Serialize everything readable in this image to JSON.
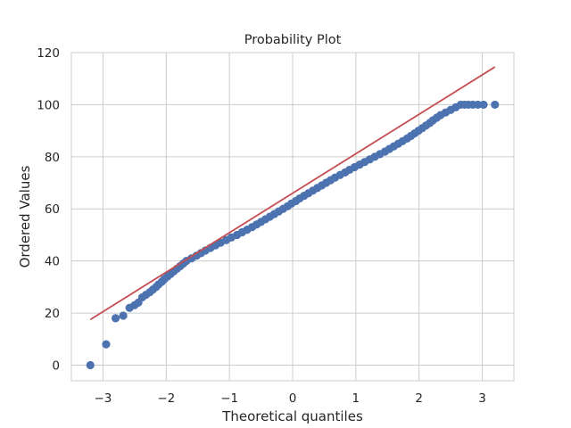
{
  "chart_data": {
    "type": "scatter",
    "title": "Probability Plot",
    "xlabel": "Theoretical quantiles",
    "ylabel": "Ordered Values",
    "xlim": [
      -3.5,
      3.5
    ],
    "ylim": [
      -6,
      120
    ],
    "x_ticks": [
      -3,
      -2,
      -1,
      0,
      1,
      2,
      3
    ],
    "x_tick_labels": [
      "−3",
      "−2",
      "−1",
      "0",
      "1",
      "2",
      "3"
    ],
    "y_ticks": [
      0,
      20,
      40,
      60,
      80,
      100,
      120
    ],
    "y_tick_labels": [
      "0",
      "20",
      "40",
      "60",
      "80",
      "100",
      "120"
    ],
    "grid": true,
    "series": [
      {
        "kind": "points",
        "color": "#4c72b0",
        "points": [
          [
            -3.2,
            0
          ],
          [
            -2.95,
            8
          ],
          [
            -2.8,
            18
          ],
          [
            -2.68,
            19
          ],
          [
            -2.58,
            22
          ],
          [
            -2.5,
            23
          ],
          [
            -2.44,
            24
          ],
          [
            -2.38,
            26
          ],
          [
            -2.32,
            27
          ],
          [
            -2.26,
            28
          ],
          [
            -2.21,
            29
          ],
          [
            -2.16,
            30
          ],
          [
            -2.12,
            31
          ],
          [
            -2.07,
            32
          ],
          [
            -2.03,
            33
          ],
          [
            -1.98,
            34
          ],
          [
            -1.93,
            35
          ],
          [
            -1.88,
            36
          ],
          [
            -1.83,
            37
          ],
          [
            -1.78,
            38
          ],
          [
            -1.73,
            39
          ],
          [
            -1.68,
            40
          ],
          [
            -1.6,
            41
          ],
          [
            -1.52,
            42
          ],
          [
            -1.45,
            43
          ],
          [
            -1.38,
            44
          ],
          [
            -1.3,
            45
          ],
          [
            -1.22,
            46
          ],
          [
            -1.14,
            47
          ],
          [
            -1.05,
            48
          ],
          [
            -0.97,
            49
          ],
          [
            -0.88,
            50
          ],
          [
            -0.8,
            51
          ],
          [
            -0.72,
            52
          ],
          [
            -0.64,
            53
          ],
          [
            -0.57,
            54
          ],
          [
            -0.5,
            55
          ],
          [
            -0.43,
            56
          ],
          [
            -0.36,
            57
          ],
          [
            -0.29,
            58
          ],
          [
            -0.22,
            59
          ],
          [
            -0.15,
            60
          ],
          [
            -0.08,
            61
          ],
          [
            -0.02,
            62
          ],
          [
            0.05,
            63
          ],
          [
            0.11,
            64
          ],
          [
            0.18,
            65
          ],
          [
            0.25,
            66
          ],
          [
            0.32,
            67
          ],
          [
            0.39,
            68
          ],
          [
            0.46,
            69
          ],
          [
            0.53,
            70
          ],
          [
            0.6,
            71
          ],
          [
            0.67,
            72
          ],
          [
            0.75,
            73
          ],
          [
            0.83,
            74
          ],
          [
            0.9,
            75
          ],
          [
            0.98,
            76
          ],
          [
            1.06,
            77
          ],
          [
            1.14,
            78
          ],
          [
            1.22,
            79
          ],
          [
            1.3,
            80
          ],
          [
            1.38,
            81
          ],
          [
            1.46,
            82
          ],
          [
            1.53,
            83
          ],
          [
            1.6,
            84
          ],
          [
            1.67,
            85
          ],
          [
            1.74,
            86
          ],
          [
            1.81,
            87
          ],
          [
            1.87,
            88
          ],
          [
            1.93,
            89
          ],
          [
            1.99,
            90
          ],
          [
            2.05,
            91
          ],
          [
            2.11,
            92
          ],
          [
            2.17,
            93
          ],
          [
            2.22,
            94
          ],
          [
            2.28,
            95
          ],
          [
            2.34,
            96
          ],
          [
            2.42,
            97
          ],
          [
            2.5,
            98
          ],
          [
            2.58,
            99
          ],
          [
            2.66,
            100
          ],
          [
            2.72,
            100
          ],
          [
            2.78,
            100
          ],
          [
            2.85,
            100
          ],
          [
            2.93,
            100
          ],
          [
            3.02,
            100
          ],
          [
            3.2,
            100
          ]
        ]
      },
      {
        "kind": "line",
        "color": "#c44e52",
        "points": [
          [
            -3.2,
            17.5
          ],
          [
            3.2,
            114.5
          ]
        ]
      }
    ]
  },
  "colors": {
    "background": "#ffffff",
    "grid": "#cccccc",
    "axes_edge": "#cccccc",
    "text": "#262626"
  }
}
